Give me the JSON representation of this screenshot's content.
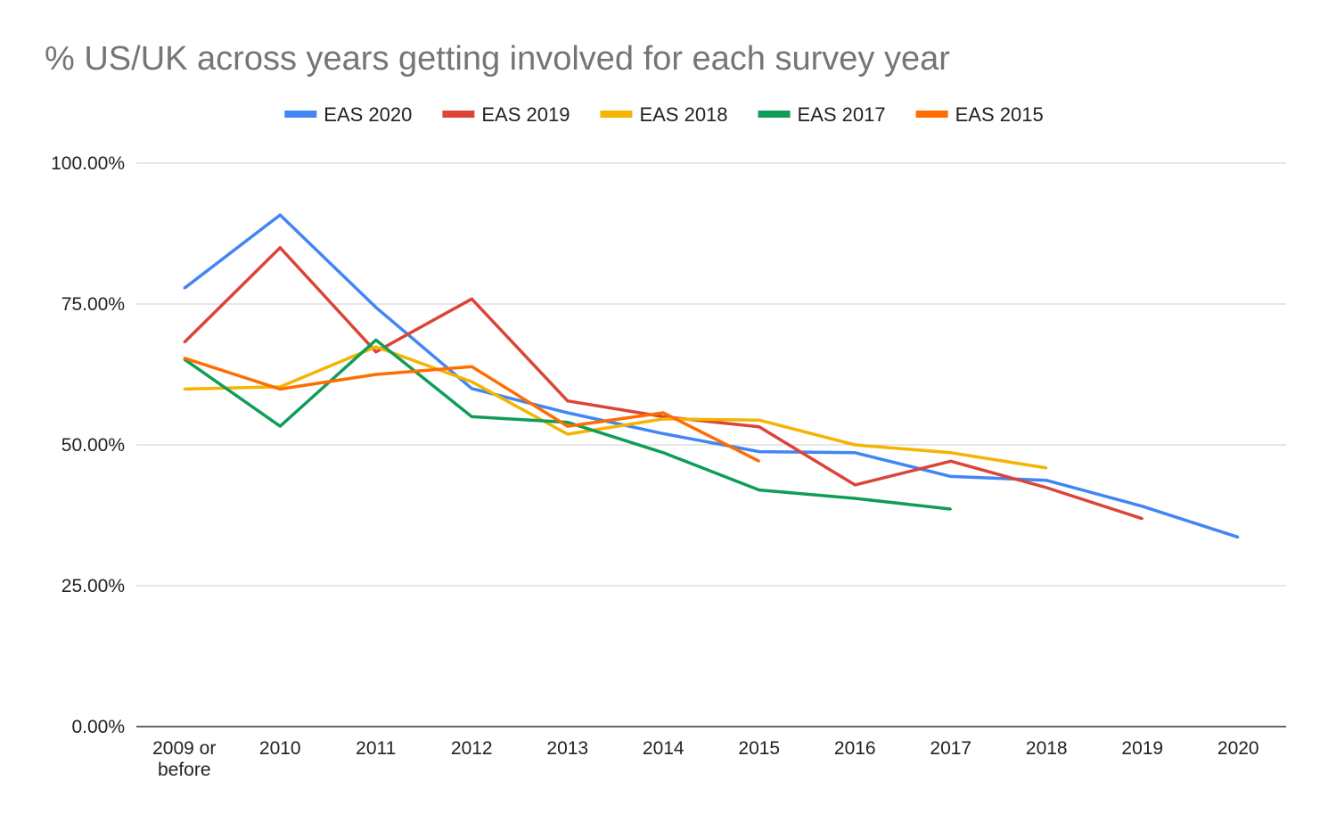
{
  "chart_data": {
    "type": "line",
    "title": "% US/UK across years getting involved for each survey year",
    "xlabel": "",
    "ylabel": "",
    "categories": [
      "2009 or before",
      "2010",
      "2011",
      "2012",
      "2013",
      "2014",
      "2015",
      "2016",
      "2017",
      "2018",
      "2019",
      "2020"
    ],
    "ylim": [
      0,
      100
    ],
    "yticks": [
      {
        "value": 0,
        "label": "0.00%"
      },
      {
        "value": 25,
        "label": "25.00%"
      },
      {
        "value": 50,
        "label": "50.00%"
      },
      {
        "value": 75,
        "label": "75.00%"
      },
      {
        "value": 100,
        "label": "100.00%"
      }
    ],
    "grid": true,
    "legend_position": "top",
    "series": [
      {
        "name": "EAS 2020",
        "color": "#4285F4",
        "values": [
          77.8,
          90.8,
          74.4,
          60.0,
          55.7,
          52.0,
          48.8,
          48.6,
          44.4,
          43.7,
          39.1,
          33.6
        ]
      },
      {
        "name": "EAS 2019",
        "color": "#DB4437",
        "values": [
          68.2,
          85.0,
          66.5,
          75.9,
          57.8,
          55.0,
          53.2,
          42.9,
          47.1,
          42.4,
          36.9,
          null
        ]
      },
      {
        "name": "EAS 2018",
        "color": "#F4B400",
        "values": [
          59.9,
          60.3,
          67.4,
          61.2,
          51.9,
          54.6,
          54.4,
          50.0,
          48.6,
          45.9,
          null,
          null
        ]
      },
      {
        "name": "EAS 2017",
        "color": "#0F9D58",
        "values": [
          65.2,
          53.3,
          68.6,
          55.0,
          54.0,
          48.6,
          42.0,
          40.5,
          38.6,
          null,
          null,
          null
        ]
      },
      {
        "name": "EAS 2015",
        "color": "#FF6D01",
        "values": [
          65.4,
          59.9,
          62.5,
          63.9,
          53.3,
          55.7,
          47.1,
          null,
          null,
          null,
          null,
          null
        ]
      }
    ]
  }
}
